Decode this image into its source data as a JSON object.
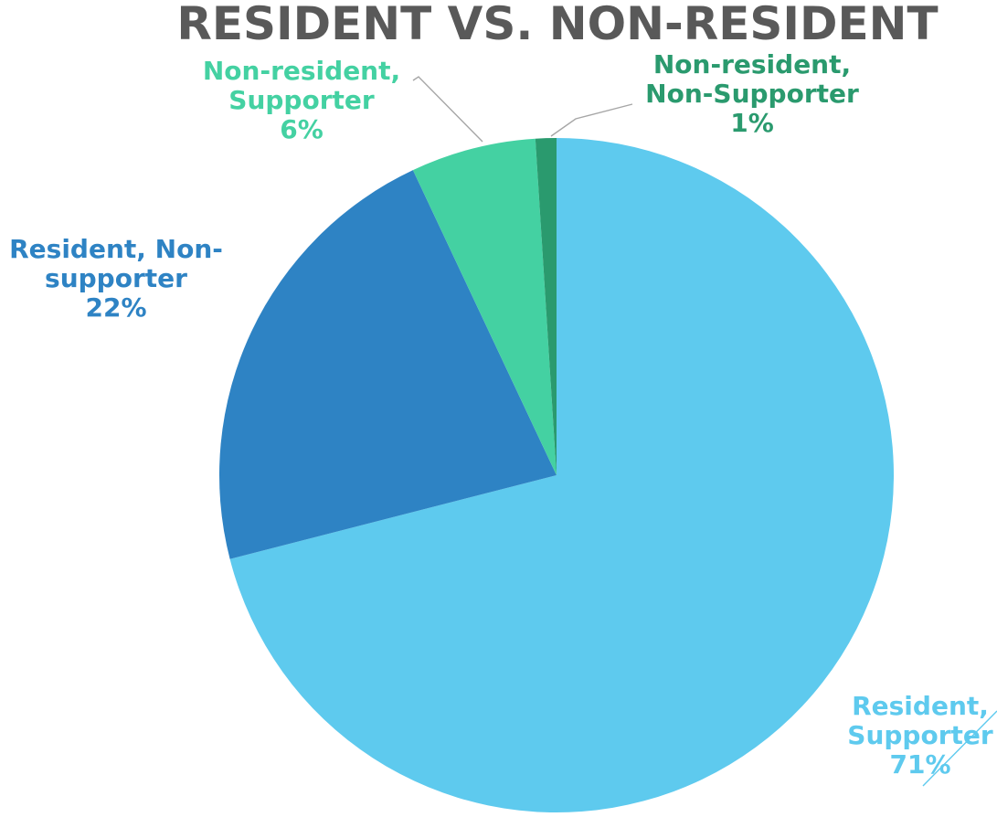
{
  "chart_data": {
    "type": "pie",
    "title": "RESIDENT VS. NON-RESIDENT",
    "categories": [
      "Resident, Supporter",
      "Resident, Non-supporter",
      "Non-resident, Supporter",
      "Non-resident, Non-Supporter"
    ],
    "values": [
      71,
      22,
      6,
      1
    ],
    "value_suffix": "%",
    "colors": [
      "#5ECAEE",
      "#2E83C4",
      "#44D1A2",
      "#2A9A6E"
    ],
    "start_angle_deg": 0,
    "direction": "clockwise",
    "labels": [
      {
        "lines": [
          "Resident,",
          "Supporter"
        ],
        "value_text": "71%",
        "color": "#5ECAEE"
      },
      {
        "lines": [
          "Resident, Non-",
          "supporter"
        ],
        "value_text": "22%",
        "color": "#2E83C4"
      },
      {
        "lines": [
          "Non-resident,",
          "Supporter"
        ],
        "value_text": "6%",
        "color": "#44D1A2"
      },
      {
        "lines": [
          "Non-resident,",
          "Non-Supporter"
        ],
        "value_text": "1%",
        "color": "#2A9A6E"
      }
    ]
  }
}
